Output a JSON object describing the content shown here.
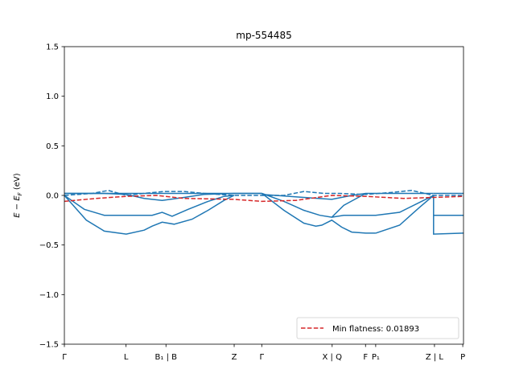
{
  "chart_data": {
    "type": "line",
    "title": "mp-554485",
    "ylabel_main": "E − E",
    "ylabel_sub": "F",
    "ylabel_unit": " (eV)",
    "ylim": [
      -1.5,
      1.5
    ],
    "xlim": [
      0,
      10
    ],
    "grid": false,
    "legend_position": "lower-right",
    "yticks": [
      {
        "v": 1.5,
        "label": "1.5"
      },
      {
        "v": 1.0,
        "label": "1.0"
      },
      {
        "v": 0.5,
        "label": "0.5"
      },
      {
        "v": 0.0,
        "label": "0.0"
      },
      {
        "v": -0.5,
        "label": "−0.5"
      },
      {
        "v": -1.0,
        "label": "−1.0"
      },
      {
        "v": -1.5,
        "label": "−1.5"
      }
    ],
    "xticks": [
      {
        "x": 0.0,
        "label": "Γ"
      },
      {
        "x": 1.5454,
        "label": "L"
      },
      {
        "x": 2.5455,
        "label": "B₁ | B"
      },
      {
        "x": 4.2545,
        "label": "Z"
      },
      {
        "x": 4.9455,
        "label": "Γ"
      },
      {
        "x": 6.7091,
        "label": "X | Q"
      },
      {
        "x": 7.5455,
        "label": "F"
      },
      {
        "x": 7.8,
        "label": "P₁"
      },
      {
        "x": 9.2727,
        "label": "Z | L"
      },
      {
        "x": 9.9818,
        "label": "P"
      }
    ],
    "series": [
      {
        "name": "",
        "style": "solid",
        "color": "#1f77b4",
        "x": [
          0,
          0.55,
          1.0,
          1.55,
          2.0,
          2.2,
          2.45,
          2.75,
          3.2,
          3.6,
          4.0,
          4.25
        ],
        "y": [
          0.0,
          -0.25,
          -0.36,
          -0.39,
          -0.35,
          -0.31,
          -0.27,
          -0.29,
          -0.24,
          -0.15,
          -0.05,
          0.0
        ]
      },
      {
        "name": "",
        "style": "solid",
        "color": "#1f77b4",
        "x": [
          0,
          0.5,
          1.0,
          1.55,
          2.2,
          2.45,
          2.7,
          3.1,
          3.6,
          4.0,
          4.25
        ],
        "y": [
          0.0,
          -0.14,
          -0.2,
          -0.2,
          -0.2,
          -0.17,
          -0.21,
          -0.14,
          -0.06,
          -0.01,
          0.0
        ]
      },
      {
        "name": "",
        "style": "solid",
        "color": "#1f77b4",
        "x": [
          0,
          1.0,
          1.55,
          2.0,
          2.45,
          3.0,
          3.5,
          4.25,
          4.95
        ],
        "y": [
          0.02,
          0.02,
          0.01,
          -0.03,
          -0.05,
          -0.02,
          0.01,
          0.02,
          0.02
        ]
      },
      {
        "name": "",
        "style": "solid",
        "color": "#1f77b4",
        "x": [
          4.95,
          5.5,
          6.0,
          6.3,
          6.45,
          6.7,
          6.95,
          7.2,
          7.55,
          7.8
        ],
        "y": [
          0.02,
          -0.15,
          -0.28,
          -0.31,
          -0.3,
          -0.25,
          -0.32,
          -0.37,
          -0.38,
          -0.38
        ]
      },
      {
        "name": "",
        "style": "solid",
        "color": "#1f77b4",
        "x": [
          7.8,
          8.4,
          8.9,
          9.25
        ],
        "y": [
          -0.38,
          -0.3,
          -0.12,
          0.0
        ]
      },
      {
        "name": "",
        "style": "solid",
        "color": "#1f77b4",
        "x": [
          4.95,
          5.5,
          6.0,
          6.4,
          6.7,
          7.0,
          7.5,
          7.8,
          8.4,
          9.0,
          9.25
        ],
        "y": [
          0.02,
          -0.06,
          -0.15,
          -0.2,
          -0.22,
          -0.2,
          -0.2,
          -0.2,
          -0.17,
          -0.05,
          0.0
        ]
      },
      {
        "name": "",
        "style": "solid",
        "color": "#1f77b4",
        "x": [
          4.95,
          6.0,
          6.7,
          7.2,
          7.55,
          8.5,
          9.25
        ],
        "y": [
          0.01,
          -0.02,
          -0.04,
          0.0,
          0.02,
          0.02,
          0.02
        ]
      },
      {
        "name": "",
        "style": "solid",
        "color": "#1f77b4",
        "x": [
          6.7,
          7.0,
          7.55
        ],
        "y": [
          -0.22,
          -0.1,
          0.02
        ]
      },
      {
        "name": "",
        "style": "solid",
        "color": "#1f77b4",
        "x": [
          9.25,
          9.25,
          10.0
        ],
        "y": [
          0.0,
          -0.39,
          -0.38
        ]
      },
      {
        "name": "",
        "style": "solid",
        "color": "#1f77b4",
        "x": [
          9.25,
          10.0
        ],
        "y": [
          -0.2,
          -0.2
        ]
      },
      {
        "name": "",
        "style": "solid",
        "color": "#1f77b4",
        "x": [
          9.25,
          10.0
        ],
        "y": [
          0.02,
          0.02
        ]
      },
      {
        "name": "",
        "style": "solid",
        "color": "#1f77b4",
        "x": [
          0,
          4.95
        ],
        "y": [
          0.02,
          0.02
        ]
      },
      {
        "name": "",
        "style": "dashed",
        "color": "#1f77b4",
        "x": [
          0,
          0.7,
          1.1,
          1.55,
          2.0,
          2.5,
          3.0,
          3.5,
          4.25,
          4.95
        ],
        "y": [
          0.0,
          0.02,
          0.05,
          0.0,
          0.02,
          0.04,
          0.04,
          0.02,
          0.0,
          0.0
        ]
      },
      {
        "name": "",
        "style": "dashed",
        "color": "#1f77b4",
        "x": [
          4.95,
          5.5,
          6.0,
          6.5,
          6.9,
          7.55,
          8.2,
          8.7,
          9.25,
          10.0
        ],
        "y": [
          0.0,
          0.0,
          0.04,
          0.02,
          0.02,
          0.01,
          0.03,
          0.05,
          0.0,
          0.0
        ]
      },
      {
        "name": "Min flatness: 0.01893",
        "style": "dashed",
        "color": "#d62728",
        "x": [
          0,
          0.8,
          1.55,
          2.3,
          3.0,
          4.25,
          4.95,
          5.8,
          6.7,
          7.55,
          8.5,
          9.25,
          10.0
        ],
        "y": [
          -0.06,
          -0.03,
          -0.01,
          0.0,
          -0.03,
          -0.04,
          -0.06,
          -0.05,
          0.0,
          -0.01,
          -0.03,
          -0.02,
          -0.01
        ]
      }
    ],
    "legend": {
      "label": "Min flatness: 0.01893",
      "color": "#d62728"
    },
    "colors": {
      "band": "#1f77b4",
      "flat": "#d62728",
      "frame": "#000000"
    }
  }
}
